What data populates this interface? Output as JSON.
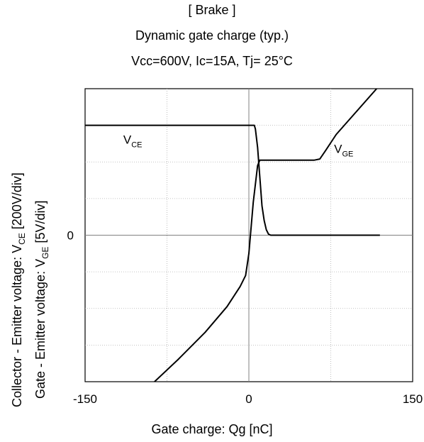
{
  "title_lines": [
    "[ Brake ]",
    "Dynamic gate charge  (typ.)",
    "Vcc=600V,   Ic=15A,   Tj= 25°C"
  ],
  "chart_data": {
    "type": "line",
    "title": "[ Brake ] Dynamic gate charge (typ.)",
    "subtitle": "Vcc=600V,   Ic=15A,   Tj= 25°C",
    "xlabel": "Gate charge: Qg [nC]",
    "ylabel_1": {
      "main": "Collector - Emitter voltage: V",
      "sub": "CE",
      "tail": " [200V/div]"
    },
    "ylabel_2": {
      "main": "Gate - Emitter voltage:     V",
      "sub": "GE",
      "tail": " [5V/div]"
    },
    "xlim": [
      -150,
      150
    ],
    "x_ticks": [
      "-150",
      "0",
      "150"
    ],
    "y_ticks": [
      "0"
    ],
    "ylim_div": [
      -4,
      4
    ],
    "grid": true,
    "series": [
      {
        "name": "V_CE",
        "label_main": "V",
        "label_sub": "CE",
        "x": [
          -150,
          5,
          6,
          8,
          10,
          12,
          14,
          16,
          18,
          20,
          120
        ],
        "y": [
          3,
          3,
          2.9,
          2.4,
          1.6,
          0.8,
          0.4,
          0.15,
          0.03,
          0,
          0
        ]
      },
      {
        "name": "V_GE",
        "label_main": "V",
        "label_sub": "GE",
        "x": [
          -90,
          -65,
          -40,
          -20,
          -8,
          -3,
          0,
          4,
          8,
          10,
          20,
          40,
          60,
          65,
          70,
          80,
          120
        ],
        "y": [
          -4.1,
          -3.4,
          -2.65,
          -1.95,
          -1.4,
          -1.1,
          -0.5,
          0.9,
          1.9,
          2.05,
          2.05,
          2.05,
          2.05,
          2.08,
          2.3,
          2.75,
          4.1
        ]
      }
    ]
  }
}
